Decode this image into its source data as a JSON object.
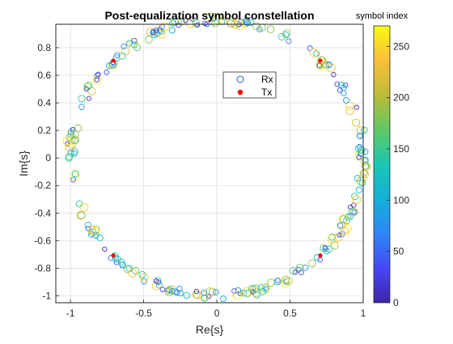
{
  "chart_data": {
    "type": "scatter",
    "title": "Post-equalization symbol constellation",
    "xlabel": "Re{s}",
    "ylabel": "Im{s}",
    "xlim": [
      -1.1,
      1.0
    ],
    "ylim": [
      -1.05,
      0.97
    ],
    "x_ticks": [
      -1,
      -0.5,
      0,
      0.5,
      1
    ],
    "x_tick_labels": [
      "-1",
      "-0.5",
      "0",
      "0.5",
      "1"
    ],
    "y_ticks": [
      -1,
      -0.8,
      -0.6,
      -0.4,
      -0.2,
      0,
      0.2,
      0.4,
      0.6,
      0.8
    ],
    "y_tick_labels": [
      "-1",
      "-0.8",
      "-0.6",
      "-0.4",
      "-0.2",
      "0",
      "0.2",
      "0.4",
      "0.6",
      "0.8"
    ],
    "grid": true,
    "legend": {
      "position": "inside upper-right",
      "entries": [
        "Rx",
        "Tx"
      ]
    },
    "colorbar": {
      "label": "symbol index",
      "range": [
        0,
        270
      ],
      "ticks": [
        0,
        50,
        100,
        150,
        200,
        250
      ],
      "tick_labels": [
        "0",
        "50",
        "100",
        "150",
        "200",
        "250"
      ],
      "colormap": "parula"
    },
    "series": [
      {
        "name": "Rx",
        "marker": "open-circle",
        "color_by": "symbol index",
        "count": 270,
        "shape": "ring",
        "radius": 1.0,
        "radius_spread": 0.03
      },
      {
        "name": "Tx",
        "marker": "filled-dot",
        "color": "#ff0000",
        "points": [
          {
            "x": 0.707,
            "y": 0.707
          },
          {
            "x": -0.707,
            "y": 0.707
          },
          {
            "x": -0.707,
            "y": -0.707
          },
          {
            "x": 0.707,
            "y": -0.707
          }
        ]
      }
    ]
  }
}
